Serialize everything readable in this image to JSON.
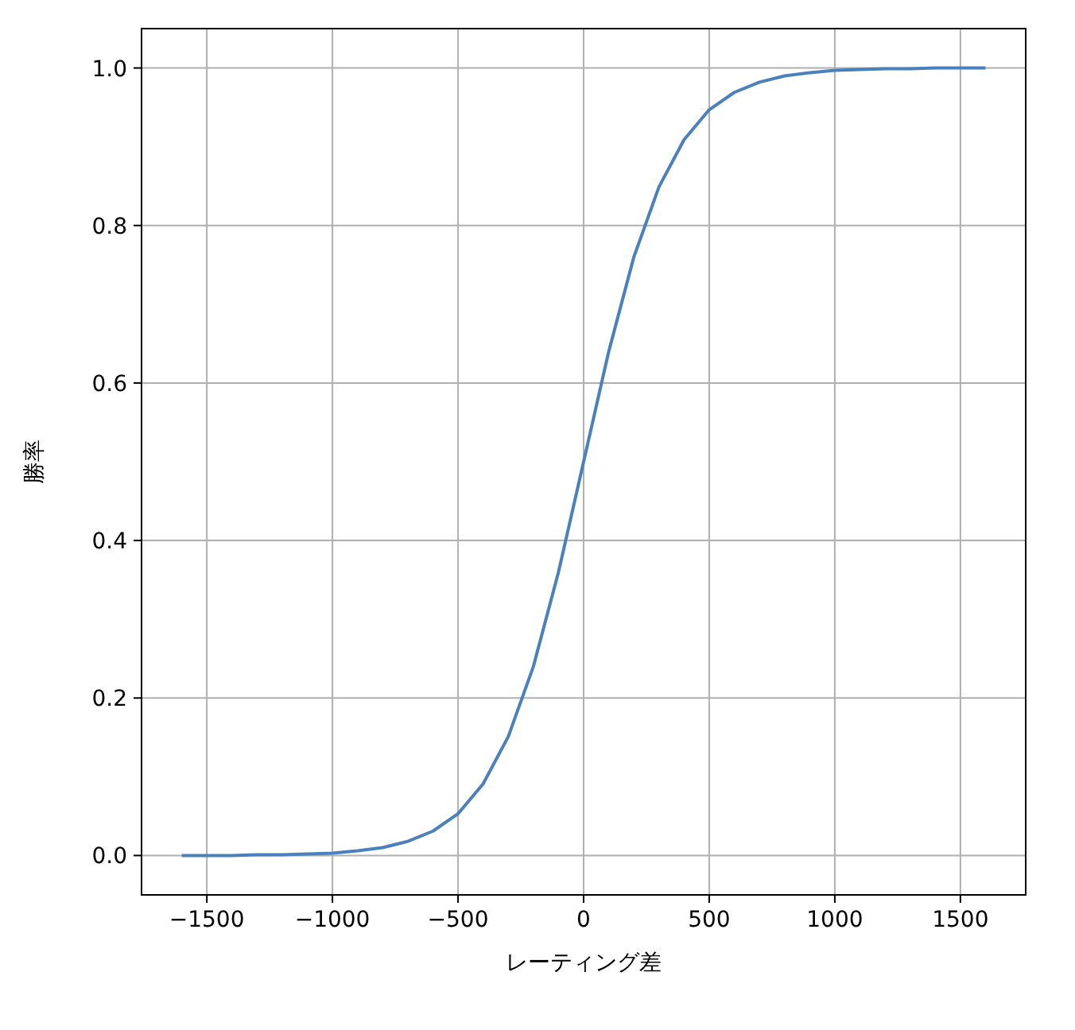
{
  "chart_data": {
    "type": "line",
    "xlabel": "レーティング差",
    "ylabel": "勝率",
    "x": [
      -1600,
      -1500,
      -1400,
      -1300,
      -1200,
      -1100,
      -1000,
      -900,
      -800,
      -700,
      -600,
      -500,
      -400,
      -300,
      -200,
      -100,
      0,
      100,
      200,
      300,
      400,
      500,
      600,
      700,
      800,
      900,
      1000,
      1100,
      1200,
      1300,
      1400,
      1500,
      1600
    ],
    "series": [
      {
        "color": "#4a81bd",
        "values": [
          0.0,
          0.0,
          0.0,
          0.001,
          0.001,
          0.002,
          0.003,
          0.006,
          0.01,
          0.018,
          0.031,
          0.053,
          0.091,
          0.151,
          0.24,
          0.36,
          0.5,
          0.64,
          0.76,
          0.849,
          0.909,
          0.947,
          0.969,
          0.982,
          0.99,
          0.994,
          0.997,
          0.998,
          0.999,
          0.999,
          1.0,
          1.0,
          1.0
        ]
      }
    ],
    "xlim": [
      -1760,
      1760
    ],
    "ylim": [
      -0.05,
      1.05
    ],
    "xticks": [
      {
        "value": -1500,
        "label": "−1500"
      },
      {
        "value": -1000,
        "label": "−1000"
      },
      {
        "value": -500,
        "label": "−500"
      },
      0,
      500,
      1000,
      1500
    ],
    "yticks": [
      {
        "value": 0,
        "label": "0.0"
      },
      {
        "value": 0.2,
        "label": "0.2"
      },
      {
        "value": 0.4,
        "label": "0.4"
      },
      {
        "value": 0.6,
        "label": "0.6"
      },
      {
        "value": 0.8,
        "label": "0.8"
      },
      {
        "value": 1,
        "label": "1.0"
      }
    ],
    "grid": true,
    "line_style": "solid"
  }
}
